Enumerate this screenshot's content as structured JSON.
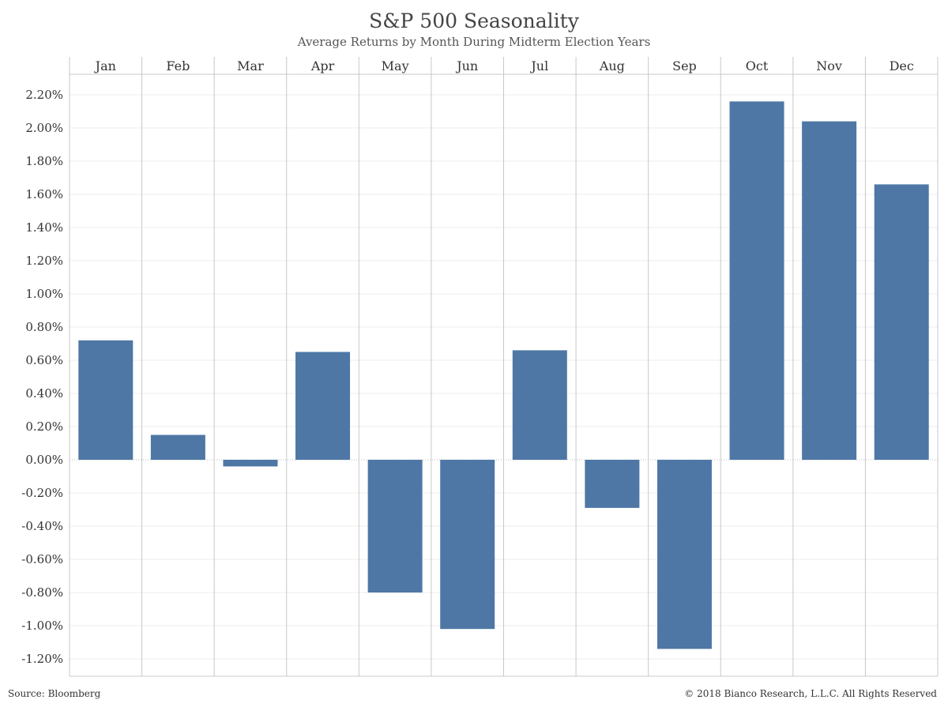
{
  "header": {
    "title": "S&P 500 Seasonality",
    "subtitle": "Average Returns by Month During Midterm Election Years"
  },
  "footer": {
    "source": "Source: Bloomberg",
    "copyright": "© 2018 Bianco Research, L.L.C. All Rights Reserved"
  },
  "colors": {
    "bar": "#4e77a5",
    "grid": "#ececec",
    "divider": "#c8c8c8",
    "zero_line": "#bbbbbb"
  },
  "chart_data": {
    "type": "bar",
    "title": "S&P 500 Seasonality",
    "subtitle": "Average Returns by Month During Midterm Election Years",
    "xlabel": "",
    "ylabel": "",
    "categories": [
      "Jan",
      "Feb",
      "Mar",
      "Apr",
      "May",
      "Jun",
      "Jul",
      "Aug",
      "Sep",
      "Oct",
      "Nov",
      "Dec"
    ],
    "values": [
      0.72,
      0.15,
      -0.04,
      0.65,
      -0.8,
      -1.02,
      0.66,
      -0.29,
      -1.14,
      2.16,
      2.04,
      1.66
    ],
    "value_unit": "%",
    "ylim": [
      -1.3,
      2.3
    ],
    "yticks": [
      2.2,
      2.0,
      1.8,
      1.6,
      1.4,
      1.2,
      1.0,
      0.8,
      0.6,
      0.4,
      0.2,
      0.0,
      -0.2,
      -0.4,
      -0.6,
      -0.8,
      -1.0,
      -1.2
    ],
    "ytick_labels": [
      "2.20%",
      "2.00%",
      "1.80%",
      "1.60%",
      "1.40%",
      "1.20%",
      "1.00%",
      "0.80%",
      "0.60%",
      "0.40%",
      "0.20%",
      "0.00%",
      "-0.20%",
      "-0.40%",
      "-0.60%",
      "-0.80%",
      "-1.00%",
      "-1.20%"
    ],
    "category_axis_position": "top",
    "grid": true,
    "legend": "none"
  }
}
